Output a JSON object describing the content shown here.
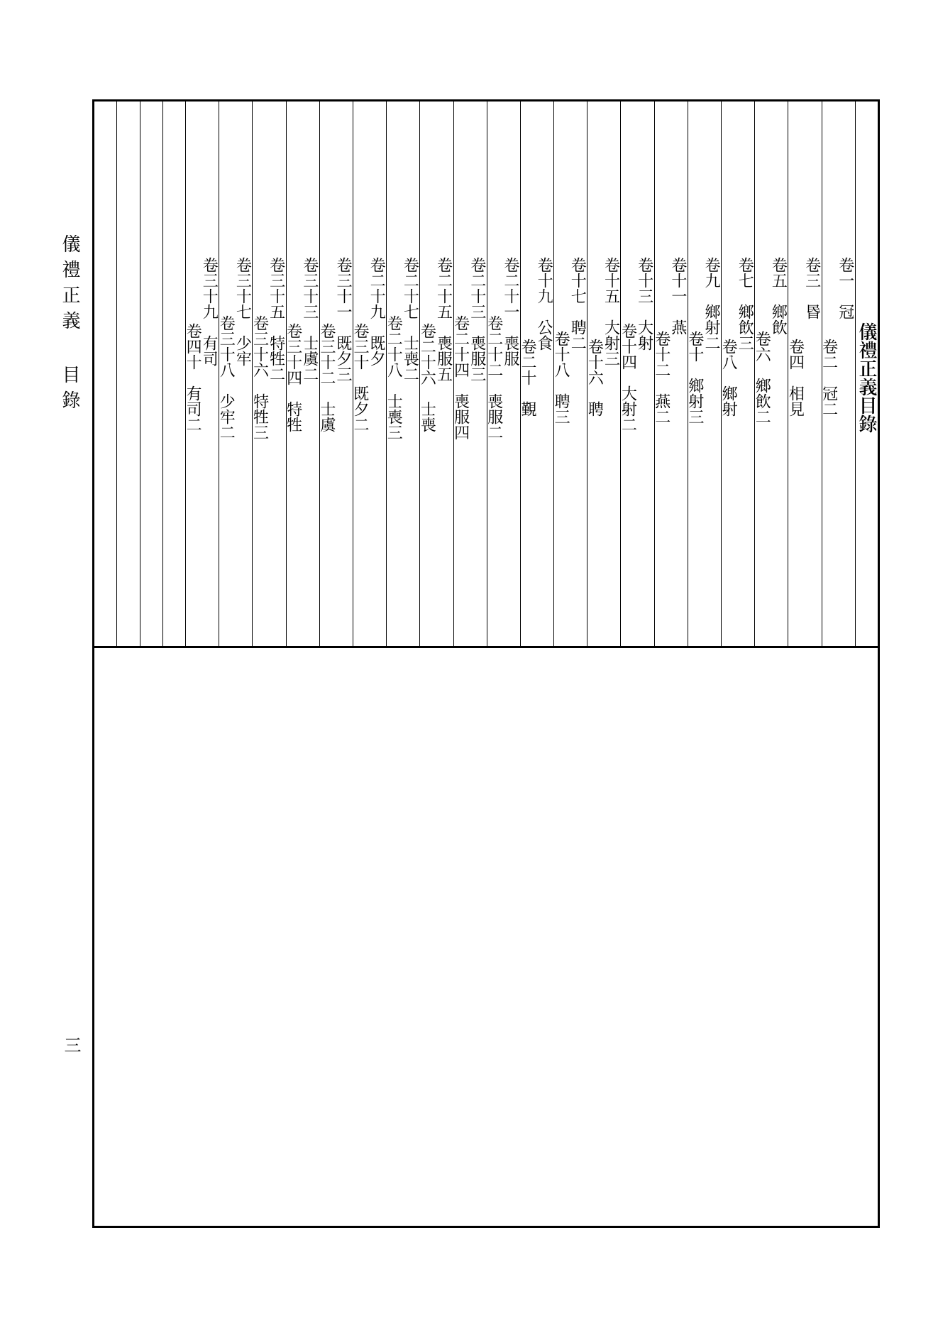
{
  "page": {
    "background_color": "#ffffff",
    "border_color": "#000000",
    "border_width_outer": 3,
    "border_width_inner": 1,
    "text_color": "#000000",
    "title_fontsize": 26,
    "entry_fontsize": 22,
    "small_fontsize": 16
  },
  "margin": {
    "label_a": "儀禮正義",
    "label_b": "目錄",
    "page_number": "三"
  },
  "title": "儀禮正義目錄",
  "columns": [
    {
      "top": "卷一　冠",
      "bottom": "卷二　冠二"
    },
    {
      "top": "卷三　昬",
      "bottom": "卷四　相見"
    },
    {
      "top": "卷五　鄉飲",
      "bottom": "卷六　鄉飲二"
    },
    {
      "top": "卷七　鄉飲三",
      "bottom": "卷八　鄉射"
    },
    {
      "top": "卷九　鄉射二",
      "bottom": "卷十　鄉射三"
    },
    {
      "top": "卷十一　燕",
      "bottom": "卷十二　燕二"
    },
    {
      "top": "卷十三　大射",
      "bottom": "卷十四　大射二"
    },
    {
      "top": "卷十五　大射三",
      "bottom": "卷十六　聘"
    },
    {
      "top": "卷十七　聘二",
      "bottom": "卷十八　聘三"
    },
    {
      "top": "卷十九　公食",
      "bottom": "卷二十　覲"
    },
    {
      "top": "卷二十一　喪服",
      "bottom": "卷二十二　喪服二"
    },
    {
      "top": "卷二十三　喪服三",
      "bottom": "卷二十四　喪服四"
    },
    {
      "top": "卷二十五　喪服五",
      "bottom": "卷二十六　士喪"
    },
    {
      "top": "卷二十七　士喪二",
      "bottom": "卷二十八　士喪三"
    },
    {
      "top": "卷二十九　既夕",
      "bottom": "卷三十　既夕二"
    },
    {
      "top": "卷三十一　既夕三",
      "bottom": "卷三十二　士虞"
    },
    {
      "top": "卷三十三　士虞二",
      "bottom": "卷三十四　特牲"
    },
    {
      "top": "卷三十五　特牲二",
      "bottom": "卷三十六　特牲三"
    },
    {
      "top": "卷三十七　少牢",
      "bottom": "卷三十八　少牢二"
    },
    {
      "top": "卷三十九　有司",
      "bottom": "卷四十　有司二"
    },
    {
      "top": "",
      "bottom": ""
    },
    {
      "top": "",
      "bottom": ""
    },
    {
      "top": "",
      "bottom": ""
    },
    {
      "top": "",
      "bottom": ""
    }
  ]
}
